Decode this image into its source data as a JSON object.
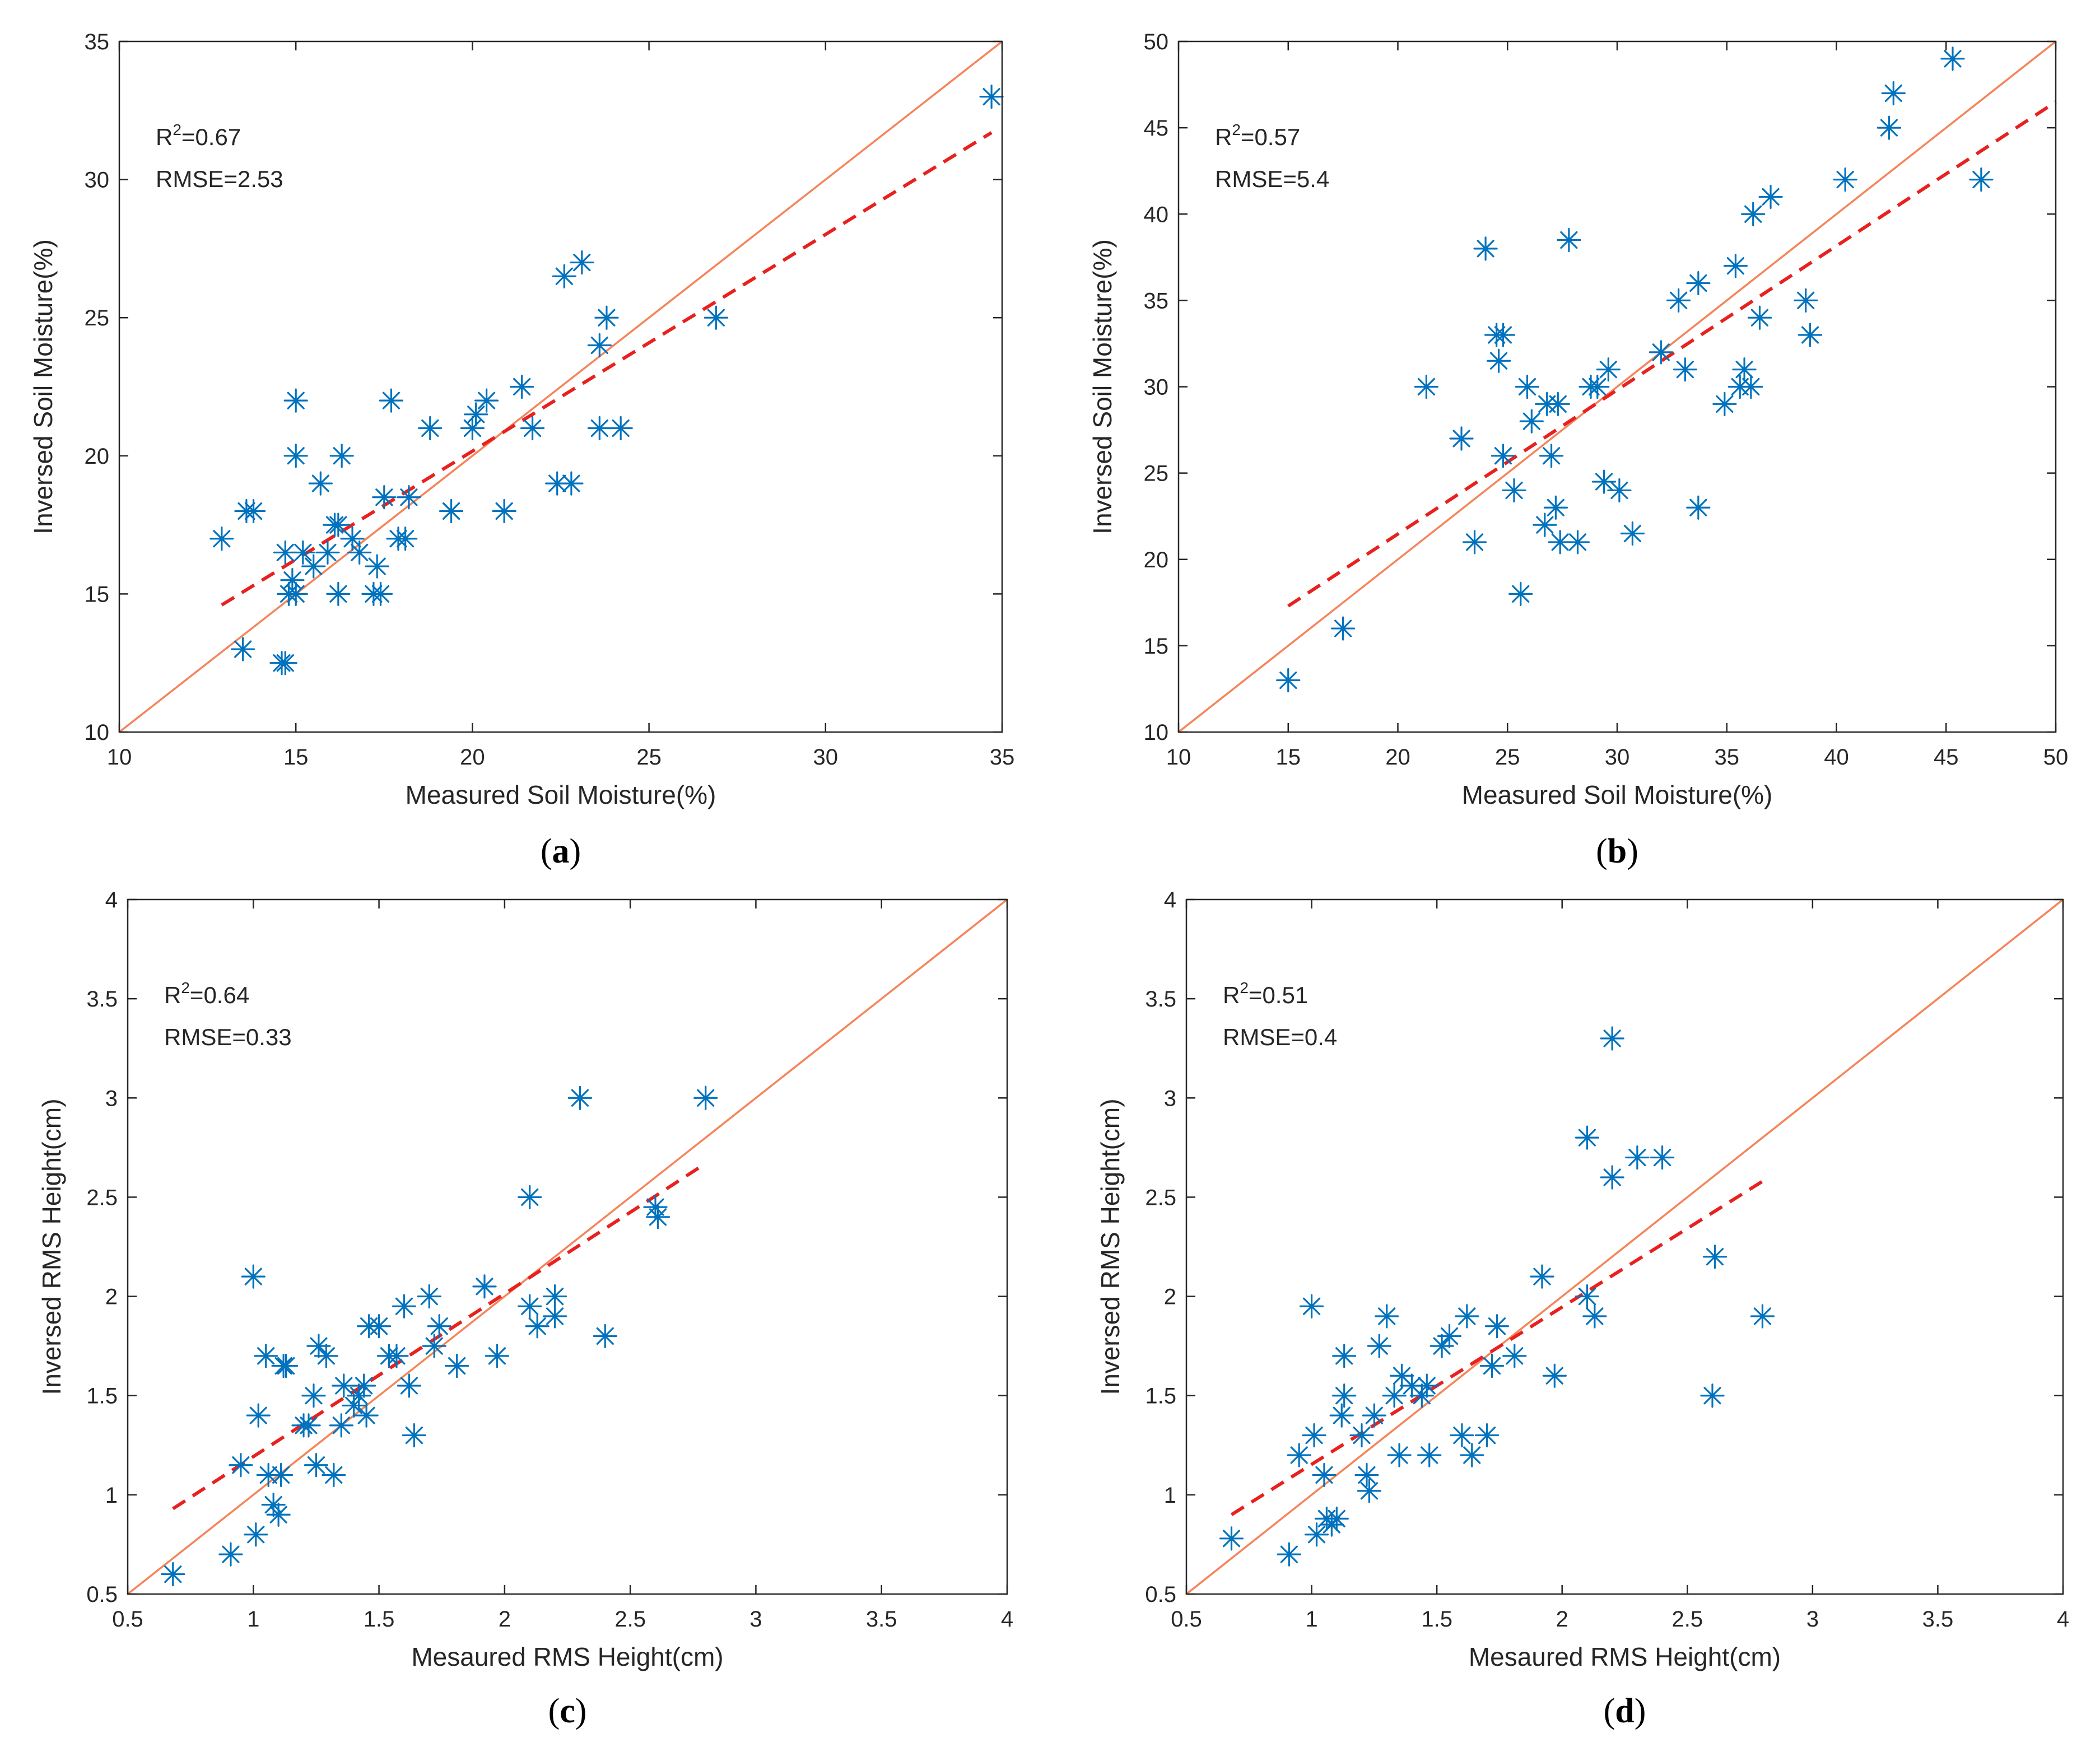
{
  "chart_data": [
    {
      "id": "a",
      "type": "scatter",
      "label": "a",
      "xlabel": "Measured Soil Moisture(%)",
      "ylabel": "Inversed Soil Moisture(%)",
      "xlim": [
        10,
        35
      ],
      "ylim": [
        10,
        35
      ],
      "xticks": [
        10,
        15,
        20,
        25,
        30,
        35
      ],
      "yticks": [
        10,
        15,
        20,
        25,
        30,
        35
      ],
      "stats": {
        "r2_prefix": "R",
        "r2_sup": "2",
        "r2_value": "=0.67",
        "rmse": "RMSE=2.53"
      },
      "fit_line": {
        "x": [
          12.9,
          34.7
        ],
        "y": [
          14.6,
          31.7
        ]
      },
      "identity_line": true,
      "marker_color": "#0072BD",
      "identity_color": "#F5845A",
      "fit_color": "#E8211F",
      "points": [
        [
          12.9,
          17
        ],
        [
          13.5,
          13
        ],
        [
          13.6,
          18
        ],
        [
          13.8,
          18
        ],
        [
          14.7,
          16.5
        ],
        [
          14.6,
          12.5
        ],
        [
          14.7,
          12.5
        ],
        [
          14.8,
          15
        ],
        [
          14.9,
          15.5
        ],
        [
          15,
          15
        ],
        [
          15,
          20
        ],
        [
          15,
          22
        ],
        [
          15.2,
          16.5
        ],
        [
          15.5,
          16
        ],
        [
          15.7,
          19
        ],
        [
          15.9,
          16.5
        ],
        [
          16.1,
          17.5
        ],
        [
          16.2,
          15
        ],
        [
          16.2,
          17.5
        ],
        [
          16.3,
          20
        ],
        [
          16.6,
          17
        ],
        [
          16.8,
          16.5
        ],
        [
          17.2,
          15
        ],
        [
          17.3,
          16
        ],
        [
          17.4,
          15
        ],
        [
          17.5,
          18.5
        ],
        [
          17.7,
          22
        ],
        [
          17.9,
          17
        ],
        [
          18.1,
          17
        ],
        [
          18.2,
          18.5
        ],
        [
          18.8,
          21
        ],
        [
          19.4,
          18
        ],
        [
          20,
          21
        ],
        [
          20.1,
          21.5
        ],
        [
          20.4,
          22
        ],
        [
          20.9,
          18
        ],
        [
          21.4,
          22.5
        ],
        [
          21.7,
          21
        ],
        [
          22.4,
          19
        ],
        [
          22.6,
          26.5
        ],
        [
          22.8,
          19
        ],
        [
          23.1,
          27
        ],
        [
          23.6,
          24
        ],
        [
          23.6,
          21
        ],
        [
          23.8,
          25
        ],
        [
          24.2,
          21
        ],
        [
          26.9,
          25
        ],
        [
          34.7,
          33
        ]
      ]
    },
    {
      "id": "b",
      "type": "scatter",
      "label": "b",
      "xlabel": "Measured Soil Moisture(%)",
      "ylabel": "Inversed Soil Moisture(%)",
      "xlim": [
        10,
        50
      ],
      "ylim": [
        10,
        50
      ],
      "xticks": [
        10,
        15,
        20,
        25,
        30,
        35,
        40,
        45,
        50
      ],
      "yticks": [
        10,
        15,
        20,
        25,
        30,
        35,
        40,
        45,
        50
      ],
      "stats": {
        "r2_prefix": "R",
        "r2_sup": "2",
        "r2_value": "=0.57",
        "rmse": "RMSE=5.4"
      },
      "fit_line": {
        "x": [
          15,
          50
        ],
        "y": [
          17.3,
          46.5
        ]
      },
      "identity_line": true,
      "marker_color": "#0072BD",
      "identity_color": "#F5845A",
      "fit_color": "#E8211F",
      "points": [
        [
          15,
          13
        ],
        [
          17.5,
          16
        ],
        [
          21.3,
          30
        ],
        [
          22.9,
          27
        ],
        [
          23.5,
          21
        ],
        [
          24,
          38
        ],
        [
          24.5,
          33
        ],
        [
          24.6,
          31.5
        ],
        [
          24.8,
          33
        ],
        [
          24.8,
          26
        ],
        [
          25.3,
          24
        ],
        [
          25.6,
          18
        ],
        [
          25.9,
          30
        ],
        [
          26.1,
          28
        ],
        [
          26.7,
          22
        ],
        [
          26.8,
          29
        ],
        [
          27,
          26
        ],
        [
          27.2,
          23
        ],
        [
          27.3,
          29
        ],
        [
          27.4,
          21
        ],
        [
          27.8,
          38.5
        ],
        [
          28.2,
          21
        ],
        [
          28.8,
          30
        ],
        [
          29.1,
          30
        ],
        [
          29.4,
          24.5
        ],
        [
          29.6,
          31
        ],
        [
          30.1,
          24
        ],
        [
          30.7,
          21.5
        ],
        [
          32,
          32
        ],
        [
          32.8,
          35
        ],
        [
          33.1,
          31
        ],
        [
          33.7,
          36
        ],
        [
          33.7,
          23
        ],
        [
          34.9,
          29
        ],
        [
          35.4,
          37
        ],
        [
          35.6,
          30
        ],
        [
          35.8,
          31
        ],
        [
          36.1,
          30
        ],
        [
          36.2,
          40
        ],
        [
          36.5,
          34
        ],
        [
          37,
          41
        ],
        [
          38.6,
          35
        ],
        [
          38.8,
          33
        ],
        [
          40.4,
          42
        ],
        [
          42.4,
          45
        ],
        [
          42.6,
          47
        ],
        [
          45.3,
          49
        ],
        [
          46.6,
          42
        ]
      ]
    },
    {
      "id": "c",
      "type": "scatter",
      "label": "c",
      "xlabel": "Mesaured RMS Height(cm)",
      "ylabel": "Inversed RMS Height(cm)",
      "xlim": [
        0.5,
        4
      ],
      "ylim": [
        0.5,
        4
      ],
      "xticks": [
        "0.5",
        "1",
        "1.5",
        "2",
        "2.5",
        "3",
        "3.5",
        "4"
      ],
      "yticks": [
        "0.5",
        "1",
        "1.5",
        "2",
        "2.5",
        "3",
        "3.5",
        "4"
      ],
      "stats": {
        "r2_prefix": "R",
        "r2_sup": "2",
        "r2_value": "=0.64",
        "rmse": "RMSE=0.33"
      },
      "fit_line": {
        "x": [
          0.68,
          2.8
        ],
        "y": [
          0.93,
          2.67
        ]
      },
      "identity_line": true,
      "marker_color": "#0072BD",
      "identity_color": "#F5845A",
      "fit_color": "#E8211F",
      "points": [
        [
          0.68,
          0.6
        ],
        [
          0.91,
          0.7
        ],
        [
          0.95,
          1.15
        ],
        [
          1,
          2.1
        ],
        [
          1.01,
          0.8
        ],
        [
          1.02,
          1.4
        ],
        [
          1.05,
          1.7
        ],
        [
          1.06,
          1.1
        ],
        [
          1.08,
          0.95
        ],
        [
          1.1,
          0.9
        ],
        [
          1.11,
          1.1
        ],
        [
          1.12,
          1.65
        ],
        [
          1.13,
          1.65
        ],
        [
          1.2,
          1.35
        ],
        [
          1.22,
          1.35
        ],
        [
          1.24,
          1.5
        ],
        [
          1.25,
          1.15
        ],
        [
          1.26,
          1.75
        ],
        [
          1.29,
          1.7
        ],
        [
          1.32,
          1.1
        ],
        [
          1.35,
          1.35
        ],
        [
          1.36,
          1.55
        ],
        [
          1.4,
          1.45
        ],
        [
          1.42,
          1.5
        ],
        [
          1.44,
          1.55
        ],
        [
          1.45,
          1.4
        ],
        [
          1.46,
          1.85
        ],
        [
          1.5,
          1.85
        ],
        [
          1.54,
          1.7
        ],
        [
          1.57,
          1.7
        ],
        [
          1.6,
          1.95
        ],
        [
          1.62,
          1.55
        ],
        [
          1.64,
          1.3
        ],
        [
          1.7,
          2
        ],
        [
          1.72,
          1.75
        ],
        [
          1.74,
          1.85
        ],
        [
          1.81,
          1.65
        ],
        [
          1.92,
          2.05
        ],
        [
          1.97,
          1.7
        ],
        [
          2.1,
          1.95
        ],
        [
          2.1,
          2.5
        ],
        [
          2.13,
          1.85
        ],
        [
          2.2,
          1.9
        ],
        [
          2.2,
          2
        ],
        [
          2.3,
          3
        ],
        [
          2.4,
          1.8
        ],
        [
          2.6,
          2.45
        ],
        [
          2.61,
          2.4
        ],
        [
          2.8,
          3
        ]
      ]
    },
    {
      "id": "d",
      "type": "scatter",
      "label": "d",
      "xlabel": "Mesaured RMS Height(cm)",
      "ylabel": "Inversed RMS Height(cm)",
      "xlim": [
        0.5,
        4
      ],
      "ylim": [
        0.5,
        4
      ],
      "xticks": [
        "0.5",
        "1",
        "1.5",
        "2",
        "2.5",
        "3",
        "3.5",
        "4"
      ],
      "yticks": [
        "0.5",
        "1",
        "1.5",
        "2",
        "2.5",
        "3",
        "3.5",
        "4"
      ],
      "stats": {
        "r2_prefix": "R",
        "r2_sup": "2",
        "r2_value": "=0.51",
        "rmse": "RMSE=0.4"
      },
      "fit_line": {
        "x": [
          0.68,
          2.8
        ],
        "y": [
          0.9,
          2.58
        ]
      },
      "identity_line": true,
      "marker_color": "#0072BD",
      "identity_color": "#F5845A",
      "fit_color": "#E8211F",
      "points": [
        [
          0.68,
          0.78
        ],
        [
          0.91,
          0.7
        ],
        [
          0.95,
          1.2
        ],
        [
          1,
          1.95
        ],
        [
          1.01,
          1.3
        ],
        [
          1.02,
          0.8
        ],
        [
          1.05,
          1.1
        ],
        [
          1.06,
          0.88
        ],
        [
          1.08,
          0.85
        ],
        [
          1.1,
          0.88
        ],
        [
          1.12,
          1.4
        ],
        [
          1.13,
          1.5
        ],
        [
          1.13,
          1.7
        ],
        [
          1.2,
          1.3
        ],
        [
          1.22,
          1.1
        ],
        [
          1.23,
          1.02
        ],
        [
          1.25,
          1.4
        ],
        [
          1.27,
          1.75
        ],
        [
          1.3,
          1.9
        ],
        [
          1.33,
          1.5
        ],
        [
          1.35,
          1.2
        ],
        [
          1.36,
          1.6
        ],
        [
          1.4,
          1.55
        ],
        [
          1.44,
          1.5
        ],
        [
          1.46,
          1.55
        ],
        [
          1.47,
          1.2
        ],
        [
          1.52,
          1.75
        ],
        [
          1.55,
          1.8
        ],
        [
          1.6,
          1.3
        ],
        [
          1.62,
          1.9
        ],
        [
          1.64,
          1.2
        ],
        [
          1.7,
          1.3
        ],
        [
          1.72,
          1.65
        ],
        [
          1.74,
          1.85
        ],
        [
          1.81,
          1.7
        ],
        [
          1.92,
          2.1
        ],
        [
          1.97,
          1.6
        ],
        [
          2.1,
          2
        ],
        [
          2.1,
          2.8
        ],
        [
          2.13,
          1.9
        ],
        [
          2.2,
          2.6
        ],
        [
          2.2,
          3.3
        ],
        [
          2.3,
          2.7
        ],
        [
          2.4,
          2.7
        ],
        [
          2.6,
          1.5
        ],
        [
          2.61,
          2.2
        ],
        [
          2.8,
          1.9
        ]
      ]
    }
  ]
}
